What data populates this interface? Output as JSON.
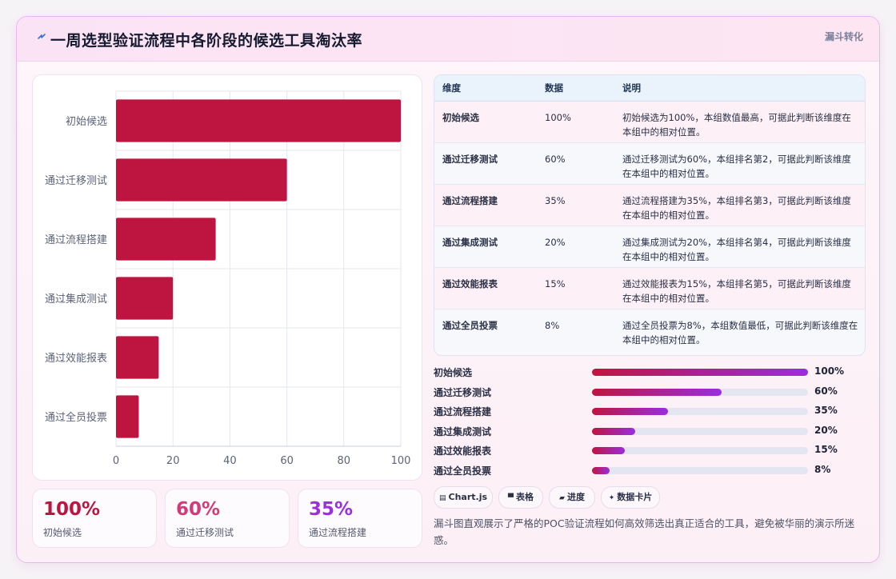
{
  "header": {
    "title": "一周选型验证流程中各阶段的候选工具淘汰率",
    "tag": "漏斗转化",
    "icon": "lightning-icon"
  },
  "chart_data": {
    "type": "bar",
    "orientation": "horizontal",
    "categories": [
      "初始候选",
      "通过迁移测试",
      "通过流程搭建",
      "通过集成测试",
      "通过效能报表",
      "通过全员投票"
    ],
    "values": [
      100,
      60,
      35,
      20,
      15,
      8
    ],
    "xlim": [
      0,
      100
    ],
    "xticks": [
      0,
      20,
      40,
      60,
      80,
      100
    ],
    "grid": true,
    "bar_color": "#be1540"
  },
  "kpis": [
    {
      "value": "100%",
      "label": "初始候选",
      "color": "#be1540"
    },
    {
      "value": "60%",
      "label": "通过迁移测试",
      "color": "#d23a78"
    },
    {
      "value": "35%",
      "label": "通过流程搭建",
      "color": "#9b2fe0"
    }
  ],
  "table": {
    "headers": [
      "维度",
      "数据",
      "说明"
    ],
    "rows": [
      {
        "dim": "初始候选",
        "value": "100%",
        "desc": "初始候选为100%，本组数值最高，可据此判断该维度在本组中的相对位置。"
      },
      {
        "dim": "通过迁移测试",
        "value": "60%",
        "desc": "通过迁移测试为60%，本组排名第2，可据此判断该维度在本组中的相对位置。"
      },
      {
        "dim": "通过流程搭建",
        "value": "35%",
        "desc": "通过流程搭建为35%，本组排名第3，可据此判断该维度在本组中的相对位置。"
      },
      {
        "dim": "通过集成测试",
        "value": "20%",
        "desc": "通过集成测试为20%，本组排名第4，可据此判断该维度在本组中的相对位置。"
      },
      {
        "dim": "通过效能报表",
        "value": "15%",
        "desc": "通过效能报表为15%，本组排名第5，可据此判断该维度在本组中的相对位置。"
      },
      {
        "dim": "通过全员投票",
        "value": "8%",
        "desc": "通过全员投票为8%，本组数值最低，可据此判断该维度在本组中的相对位置。"
      }
    ]
  },
  "progress": [
    {
      "label": "初始候选",
      "value": "100%",
      "fraction": 1.0
    },
    {
      "label": "通过迁移测试",
      "value": "60%",
      "fraction": 0.6
    },
    {
      "label": "通过流程搭建",
      "value": "35%",
      "fraction": 0.35
    },
    {
      "label": "通过集成测试",
      "value": "20%",
      "fraction": 0.2
    },
    {
      "label": "通过效能报表",
      "value": "15%",
      "fraction": 0.15
    },
    {
      "label": "通过全员投票",
      "value": "8%",
      "fraction": 0.08
    }
  ],
  "chips": [
    {
      "icon": "chart-icon",
      "label": "Chart.js"
    },
    {
      "icon": "table-icon",
      "label": "表格"
    },
    {
      "icon": "progress-icon",
      "label": "进度"
    },
    {
      "icon": "sparkle-icon",
      "label": "数据卡片"
    }
  ],
  "summary": "漏斗图直观展示了严格的POC验证流程如何高效筛选出真正适合的工具，避免被华丽的演示所迷惑。"
}
